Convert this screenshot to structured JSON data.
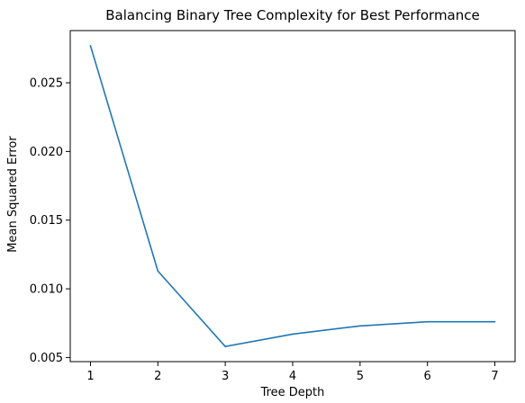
{
  "chart_data": {
    "type": "line",
    "title": "Balancing Binary Tree Complexity for Best Performance",
    "xlabel": "Tree Depth",
    "ylabel": "Mean Squared Error",
    "x": [
      1,
      2,
      3,
      4,
      5,
      6,
      7
    ],
    "series": [
      {
        "values": [
          0.0277,
          0.0113,
          0.0058,
          0.0067,
          0.0073,
          0.0076,
          0.0076
        ],
        "color": "#1f77b4"
      }
    ],
    "xticks": [
      "1",
      "2",
      "3",
      "4",
      "5",
      "6",
      "7"
    ],
    "xtick_values": [
      1,
      2,
      3,
      4,
      5,
      6,
      7
    ],
    "yticks": [
      "0.005",
      "0.010",
      "0.015",
      "0.020",
      "0.025"
    ],
    "ytick_values": [
      0.005,
      0.01,
      0.015,
      0.02,
      0.025
    ],
    "xlim": [
      0.7,
      7.3
    ],
    "ylim": [
      0.0047,
      0.0288
    ],
    "grid": false,
    "legend": "none"
  }
}
